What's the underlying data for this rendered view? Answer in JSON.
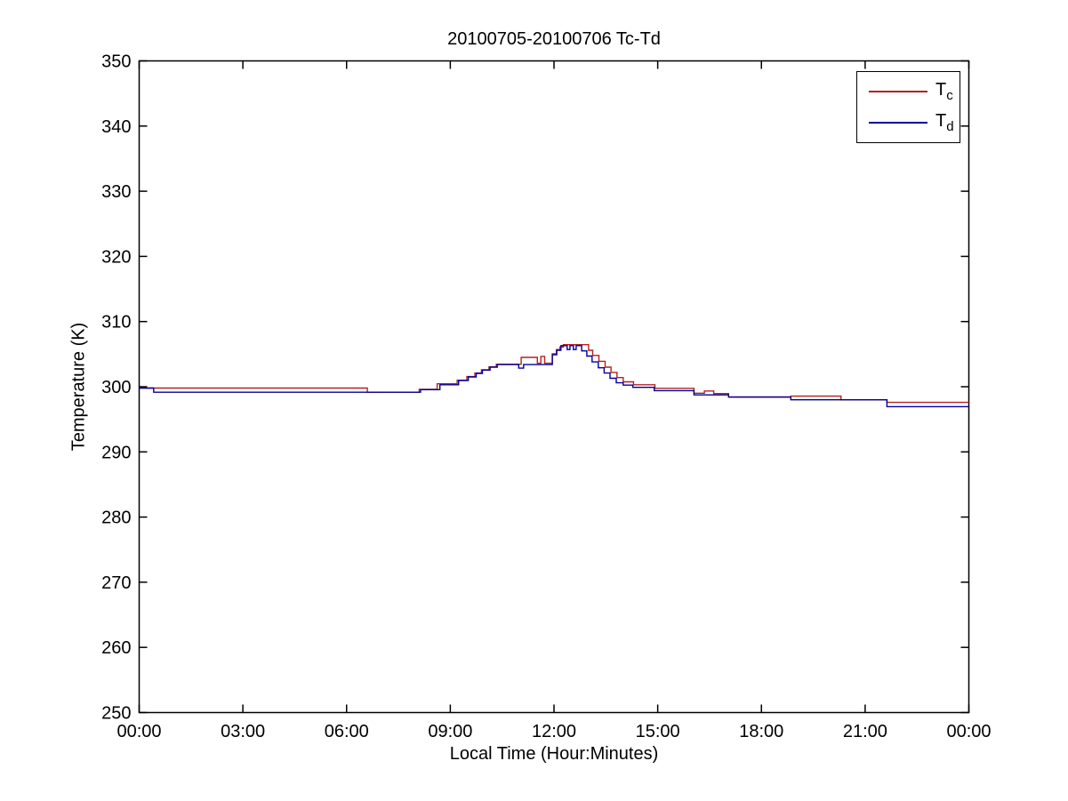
{
  "figure": {
    "background": "#ffffff"
  },
  "chart_data": {
    "type": "line",
    "title": "20100705-20100706 Tc-Td",
    "xlabel": "Local Time (Hour:Minutes)",
    "ylabel": "Temperature (K)",
    "xlim_hours": [
      0,
      24
    ],
    "ylim": [
      250,
      350
    ],
    "x_ticks_hours": [
      0,
      3,
      6,
      9,
      12,
      15,
      18,
      21,
      24
    ],
    "x_tick_labels": [
      "00:00",
      "03:00",
      "06:00",
      "09:00",
      "12:00",
      "15:00",
      "18:00",
      "21:00",
      "00:00"
    ],
    "y_ticks": [
      250,
      260,
      270,
      280,
      290,
      300,
      310,
      320,
      330,
      340,
      350
    ],
    "y_tick_labels": [
      "250",
      "260",
      "270",
      "280",
      "290",
      "300",
      "310",
      "320",
      "330",
      "340",
      "350"
    ],
    "grid": false,
    "axis_color": "#000000",
    "tick_style": "inward-all-sides",
    "legend": {
      "position": "top-right",
      "border_color": "#000000",
      "background": "#ffffff"
    },
    "series": [
      {
        "name": "Tc",
        "legend_label": "T",
        "legend_sub": "c",
        "color": "#b22222",
        "line_style": "step-after",
        "points": [
          [
            0.0,
            299.8
          ],
          [
            6.6,
            299.15
          ],
          [
            8.1,
            299.6
          ],
          [
            8.62,
            300.45
          ],
          [
            9.2,
            301.0
          ],
          [
            9.48,
            301.55
          ],
          [
            9.71,
            302.1
          ],
          [
            9.9,
            302.6
          ],
          [
            10.12,
            303.05
          ],
          [
            10.33,
            303.45
          ],
          [
            11.05,
            304.5
          ],
          [
            11.52,
            303.6
          ],
          [
            11.62,
            304.65
          ],
          [
            11.73,
            303.6
          ],
          [
            11.95,
            305.05
          ],
          [
            12.07,
            305.7
          ],
          [
            12.17,
            306.1
          ],
          [
            12.27,
            306.45
          ],
          [
            13.0,
            305.6
          ],
          [
            13.12,
            304.8
          ],
          [
            13.3,
            303.9
          ],
          [
            13.48,
            303.0
          ],
          [
            13.65,
            302.2
          ],
          [
            13.82,
            301.4
          ],
          [
            14.0,
            300.75
          ],
          [
            14.3,
            300.3
          ],
          [
            14.92,
            299.75
          ],
          [
            16.05,
            299.0
          ],
          [
            16.35,
            299.35
          ],
          [
            16.62,
            298.95
          ],
          [
            17.05,
            298.45
          ],
          [
            18.85,
            298.55
          ],
          [
            20.3,
            298.0
          ],
          [
            21.63,
            297.6
          ],
          [
            24.0,
            297.6
          ]
        ]
      },
      {
        "name": "Td",
        "legend_label": "T",
        "legend_sub": "d",
        "color": "#000099",
        "line_style": "step-after",
        "points": [
          [
            0.0,
            299.8
          ],
          [
            0.42,
            299.15
          ],
          [
            8.14,
            299.55
          ],
          [
            8.7,
            300.3
          ],
          [
            9.24,
            300.95
          ],
          [
            9.52,
            301.5
          ],
          [
            9.75,
            302.05
          ],
          [
            9.93,
            302.55
          ],
          [
            10.15,
            303.0
          ],
          [
            10.36,
            303.4
          ],
          [
            10.98,
            302.85
          ],
          [
            11.12,
            303.4
          ],
          [
            11.95,
            304.9
          ],
          [
            12.08,
            305.6
          ],
          [
            12.2,
            306.3
          ],
          [
            12.38,
            305.7
          ],
          [
            12.46,
            306.3
          ],
          [
            12.56,
            305.7
          ],
          [
            12.64,
            306.3
          ],
          [
            12.8,
            305.5
          ],
          [
            12.95,
            304.7
          ],
          [
            13.1,
            303.8
          ],
          [
            13.28,
            302.9
          ],
          [
            13.45,
            302.1
          ],
          [
            13.62,
            301.3
          ],
          [
            13.8,
            300.6
          ],
          [
            14.0,
            300.25
          ],
          [
            14.28,
            299.9
          ],
          [
            14.9,
            299.4
          ],
          [
            16.05,
            298.75
          ],
          [
            17.05,
            298.4
          ],
          [
            18.85,
            298.0
          ],
          [
            21.63,
            296.95
          ],
          [
            24.0,
            296.95
          ]
        ]
      }
    ]
  }
}
